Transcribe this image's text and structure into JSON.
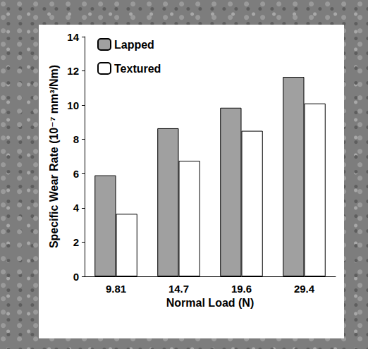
{
  "chart_data": {
    "type": "bar",
    "xlabel": "Normal Load (N)",
    "ylabel": "Specific Wear Rate (10⁻⁷ mm³/Nm)",
    "categories": [
      "9.81",
      "14.7",
      "19.6",
      "29.4"
    ],
    "series": [
      {
        "name": "Lapped",
        "color": "#a0a0a0",
        "values": [
          5.9,
          8.65,
          9.85,
          11.65
        ]
      },
      {
        "name": "Textured",
        "color": "#ffffff",
        "values": [
          3.65,
          6.75,
          8.5,
          10.1
        ]
      }
    ],
    "ylim": [
      0,
      14
    ],
    "yticks": [
      0,
      2,
      4,
      6,
      8,
      10,
      12,
      14
    ],
    "grid": false,
    "legend": "upper left"
  }
}
